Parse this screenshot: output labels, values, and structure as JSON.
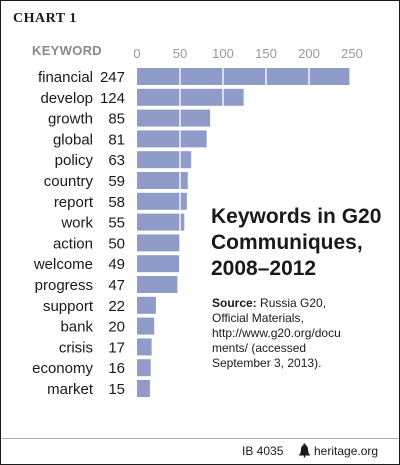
{
  "chart_label": "CHART 1",
  "column_header": "KEYWORD",
  "title_lines": [
    "Keywords in G20",
    "Communiques,",
    "2008–2012"
  ],
  "source": {
    "label": "Source:",
    "lines": [
      "Russia G20,",
      "Official Materials,",
      "http://www.g20.org/docu",
      "ments/ (accessed",
      "September 3, 2013)."
    ]
  },
  "footer": {
    "code": "IB 4035",
    "site": "heritage.org",
    "icon": "liberty-bell-icon"
  },
  "colors": {
    "bar": "#8f9cc9",
    "gridline": "#ffffff",
    "text": "#1a1a1a",
    "tick": "#9a9a9a"
  },
  "chart_data": {
    "type": "bar",
    "orientation": "horizontal",
    "categories": [
      "financial",
      "develop",
      "growth",
      "global",
      "policy",
      "country",
      "report",
      "work",
      "action",
      "welcome",
      "progress",
      "support",
      "bank",
      "crisis",
      "economy",
      "market"
    ],
    "values": [
      247,
      124,
      85,
      81,
      63,
      59,
      58,
      55,
      50,
      49,
      47,
      22,
      20,
      17,
      16,
      15
    ],
    "xticks": [
      0,
      50,
      100,
      150,
      200,
      250
    ],
    "xlim": [
      0,
      250
    ],
    "grid": "white vertical lines over bars",
    "title": "Keywords in G20 Communiques, 2008–2012"
  }
}
